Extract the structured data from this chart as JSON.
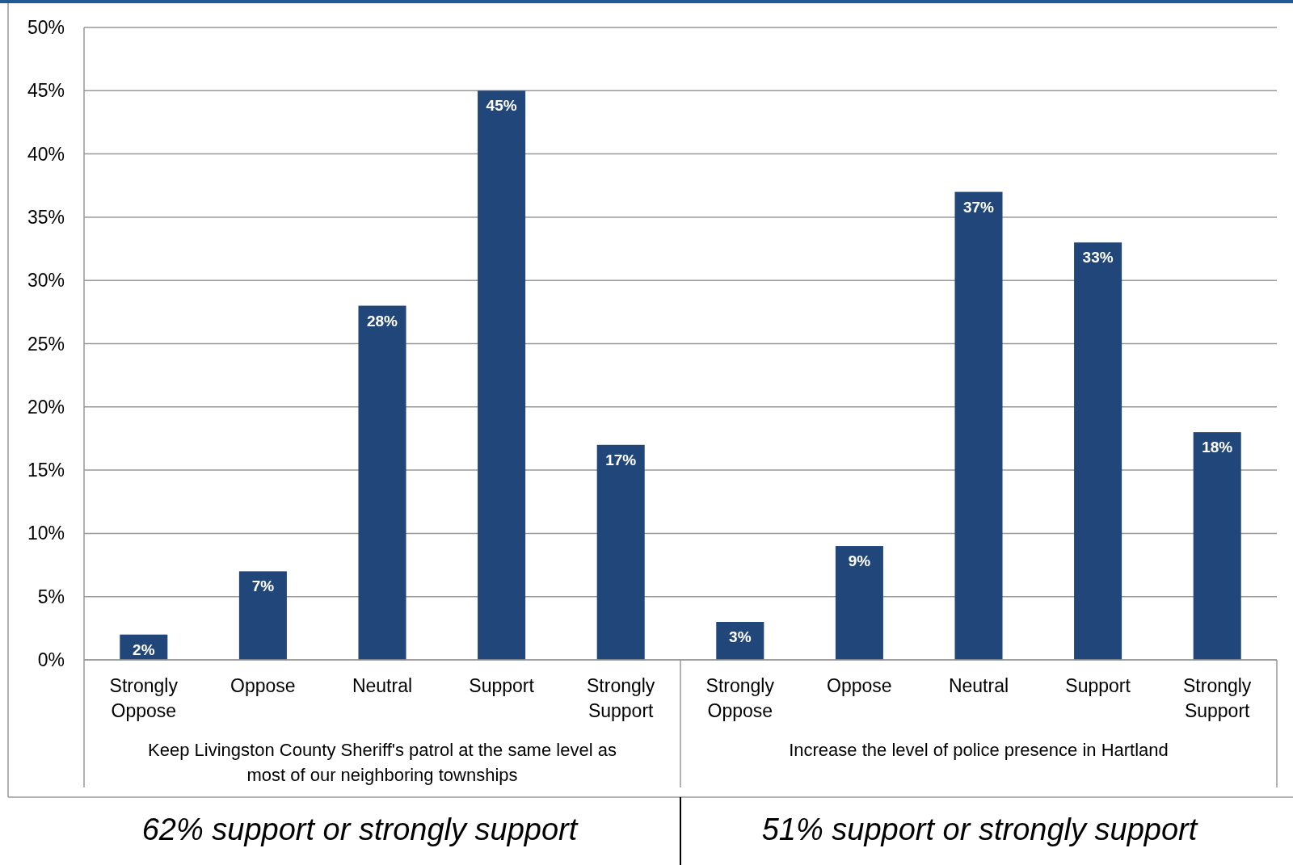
{
  "chart_data": {
    "type": "bar",
    "categories": [
      "Strongly Oppose",
      "Oppose",
      "Neutral",
      "Support",
      "Strongly Support",
      "Strongly Oppose",
      "Oppose",
      "Neutral",
      "Support",
      "Strongly Support"
    ],
    "values": [
      2,
      7,
      28,
      45,
      17,
      3,
      9,
      37,
      33,
      18
    ],
    "color": "#21477a",
    "value_labels": [
      "2%",
      "7%",
      "28%",
      "45%",
      "17%",
      "3%",
      "9%",
      "37%",
      "33%",
      "18%"
    ],
    "ylim": [
      0,
      50
    ],
    "yticks": [
      {
        "value": 0,
        "label": "0%"
      },
      {
        "value": 5,
        "label": "5%"
      },
      {
        "value": 10,
        "label": "10%"
      },
      {
        "value": 15,
        "label": "15%"
      },
      {
        "value": 20,
        "label": "20%"
      },
      {
        "value": 25,
        "label": "25%"
      },
      {
        "value": 30,
        "label": "30%"
      },
      {
        "value": 35,
        "label": "35%"
      },
      {
        "value": 40,
        "label": "40%"
      },
      {
        "value": 45,
        "label": "45%"
      },
      {
        "value": 50,
        "label": "50%"
      }
    ],
    "grid": "y",
    "annotations": [
      "Keep Livingston County Sheriff's patrol at the same level as most of our neighboring townships",
      "Increase the level of police presence in Hartland",
      "62% support or strongly support",
      "51% support or strongly support"
    ]
  }
}
